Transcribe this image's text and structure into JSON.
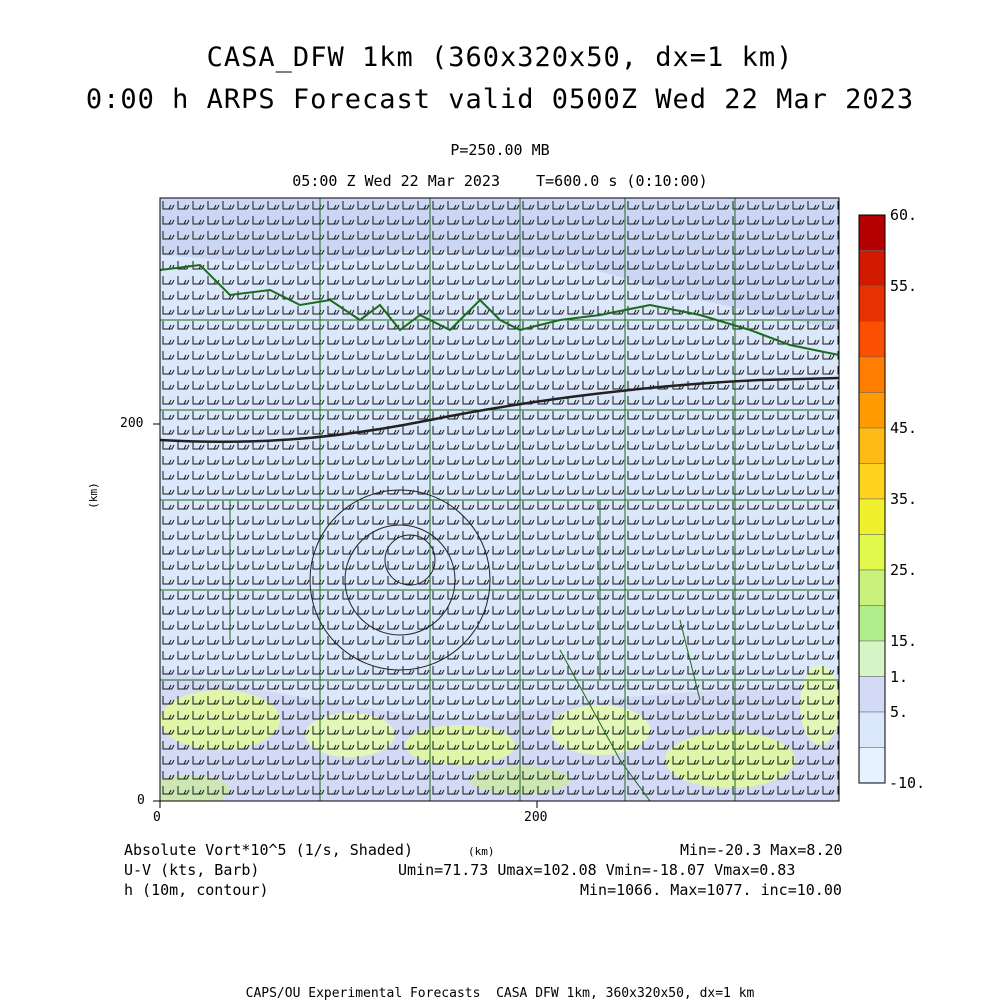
{
  "header": {
    "title_line1": "CASA_DFW 1km (360x320x50, dx=1 km)",
    "title_line2": "0:00 h ARPS Forecast valid 0500Z Wed 22 Mar 2023",
    "level": "P=250.00 MB",
    "time_line": "05:00 Z Wed 22 Mar 2023    T=600.0 s (0:10:00)"
  },
  "chart_data": {
    "type": "heatmap",
    "x_axis": {
      "label": "(km)",
      "ticks": [
        0,
        200
      ],
      "range": [
        0,
        360
      ]
    },
    "y_axis": {
      "label": "(km)",
      "ticks": [
        0,
        200
      ],
      "range": [
        0,
        200
      ]
    },
    "colorbar": {
      "labels": [
        "60.",
        "55.",
        "45.",
        "35.",
        "25.",
        "15.",
        "5.",
        "1.",
        "-10."
      ],
      "colors": [
        "#b40000",
        "#d21a00",
        "#e63200",
        "#fa5000",
        "#ff7d00",
        "#ff9a00",
        "#ffbb14",
        "#ffd21e",
        "#f0f02d",
        "#e1fa4b",
        "#c9f27a",
        "#b2ed8c",
        "#d5f5c6",
        "#d3daf6",
        "#dbe7fa",
        "#e6f2ff"
      ]
    },
    "fields": [
      {
        "name": "Absolute Vort*10^5 (1/s, Shaded)",
        "min": -20.3,
        "max": 8.2
      },
      {
        "name": "U-V (kts, Barb)",
        "umin": 71.73,
        "umax": 102.08,
        "vmin": -18.07,
        "vmax": 0.83
      },
      {
        "name": "h (10m, contour)",
        "min": 1066,
        "max": 1077,
        "inc": 10.0
      }
    ]
  },
  "footer": {
    "field1": "Absolute Vort*10^5 (1/s, Shaded)",
    "field1_stats": "Min=-20.3 Max=8.20",
    "field2": "U-V (kts, Barb)",
    "field2_stats": "Umin=71.73 Umax=102.08 Vmin=-18.07 Vmax=0.83",
    "field3": "h (10m, contour)",
    "field3_stats": "Min=1066. Max=1077. inc=10.00",
    "xunit": "(km)",
    "credit": "CAPS/OU Experimental Forecasts  CASA DFW 1km, 360x320x50, dx=1 km"
  }
}
